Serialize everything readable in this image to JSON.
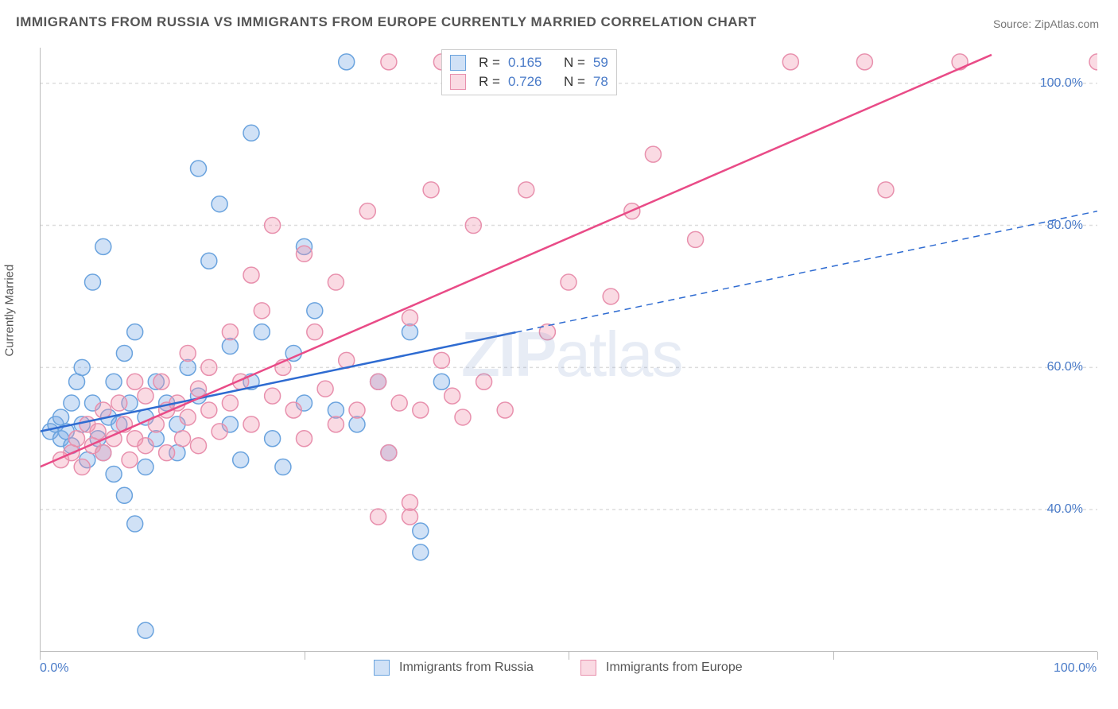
{
  "title": "IMMIGRANTS FROM RUSSIA VS IMMIGRANTS FROM EUROPE CURRENTLY MARRIED CORRELATION CHART",
  "source": "Source: ZipAtlas.com",
  "y_axis_label": "Currently Married",
  "watermark": {
    "zip": "ZIP",
    "atlas": "atlas"
  },
  "chart": {
    "type": "scatter",
    "xlim": [
      0,
      100
    ],
    "ylim": [
      20,
      105
    ],
    "x_ticks": [
      0,
      50,
      100
    ],
    "x_tick_labels": [
      "0.0%",
      "",
      "100.0%"
    ],
    "y_ticks": [
      40,
      60,
      80,
      100
    ],
    "y_tick_labels": [
      "40.0%",
      "60.0%",
      "80.0%",
      "100.0%"
    ],
    "x_minor_ticks": [
      0,
      25,
      50,
      75,
      100
    ],
    "grid_color": "#dddddd",
    "axis_color": "#bbbbbb",
    "plot_bg": "#ffffff",
    "series": [
      {
        "name": "Immigrants from Russia",
        "legend_label": "Immigrants from Russia",
        "R": "0.165",
        "N": "59",
        "marker_fill": "rgba(120,170,230,0.35)",
        "marker_stroke": "#6aa3de",
        "marker_radius": 10,
        "line_color": "#2e6bd1",
        "line_width": 2.5,
        "line_dash_after": 45,
        "trend": {
          "x1": 0,
          "y1": 51,
          "x2": 100,
          "y2": 82
        },
        "points": [
          [
            1,
            51
          ],
          [
            1.5,
            52
          ],
          [
            2,
            50
          ],
          [
            2,
            53
          ],
          [
            2.5,
            51
          ],
          [
            3,
            55
          ],
          [
            3,
            49
          ],
          [
            3.5,
            58
          ],
          [
            4,
            52
          ],
          [
            4,
            60
          ],
          [
            4.5,
            47
          ],
          [
            5,
            72
          ],
          [
            5,
            55
          ],
          [
            5.5,
            50
          ],
          [
            6,
            77
          ],
          [
            6,
            48
          ],
          [
            6.5,
            53
          ],
          [
            7,
            45
          ],
          [
            7,
            58
          ],
          [
            7.5,
            52
          ],
          [
            8,
            62
          ],
          [
            8,
            42
          ],
          [
            8.5,
            55
          ],
          [
            9,
            38
          ],
          [
            9,
            65
          ],
          [
            10,
            46
          ],
          [
            10,
            53
          ],
          [
            11,
            58
          ],
          [
            11,
            50
          ],
          [
            12,
            55
          ],
          [
            13,
            48
          ],
          [
            13,
            52
          ],
          [
            14,
            60
          ],
          [
            15,
            88
          ],
          [
            15,
            56
          ],
          [
            16,
            75
          ],
          [
            17,
            83
          ],
          [
            18,
            52
          ],
          [
            18,
            63
          ],
          [
            19,
            47
          ],
          [
            20,
            93
          ],
          [
            20,
            58
          ],
          [
            21,
            65
          ],
          [
            22,
            50
          ],
          [
            23,
            46
          ],
          [
            24,
            62
          ],
          [
            25,
            77
          ],
          [
            25,
            55
          ],
          [
            26,
            68
          ],
          [
            28,
            54
          ],
          [
            29,
            103
          ],
          [
            30,
            52
          ],
          [
            32,
            58
          ],
          [
            33,
            48
          ],
          [
            35,
            65
          ],
          [
            36,
            34
          ],
          [
            36,
            37
          ],
          [
            38,
            58
          ],
          [
            10,
            23
          ]
        ]
      },
      {
        "name": "Immigrants from Europe",
        "legend_label": "Immigrants from Europe",
        "R": "0.726",
        "N": "78",
        "marker_fill": "rgba(240,150,175,0.35)",
        "marker_stroke": "#e890ad",
        "marker_radius": 10,
        "line_color": "#e94b87",
        "line_width": 2.5,
        "trend": {
          "x1": 0,
          "y1": 46,
          "x2": 90,
          "y2": 104
        },
        "points": [
          [
            2,
            47
          ],
          [
            3,
            48
          ],
          [
            3.5,
            50
          ],
          [
            4,
            46
          ],
          [
            4.5,
            52
          ],
          [
            5,
            49
          ],
          [
            5.5,
            51
          ],
          [
            6,
            54
          ],
          [
            6,
            48
          ],
          [
            7,
            50
          ],
          [
            7.5,
            55
          ],
          [
            8,
            52
          ],
          [
            8.5,
            47
          ],
          [
            9,
            58
          ],
          [
            9,
            50
          ],
          [
            10,
            56
          ],
          [
            10,
            49
          ],
          [
            11,
            52
          ],
          [
            11.5,
            58
          ],
          [
            12,
            54
          ],
          [
            12,
            48
          ],
          [
            13,
            55
          ],
          [
            13.5,
            50
          ],
          [
            14,
            62
          ],
          [
            14,
            53
          ],
          [
            15,
            57
          ],
          [
            15,
            49
          ],
          [
            16,
            60
          ],
          [
            16,
            54
          ],
          [
            17,
            51
          ],
          [
            18,
            65
          ],
          [
            18,
            55
          ],
          [
            19,
            58
          ],
          [
            20,
            73
          ],
          [
            20,
            52
          ],
          [
            21,
            68
          ],
          [
            22,
            80
          ],
          [
            22,
            56
          ],
          [
            23,
            60
          ],
          [
            24,
            54
          ],
          [
            25,
            76
          ],
          [
            25,
            50
          ],
          [
            26,
            65
          ],
          [
            27,
            57
          ],
          [
            28,
            72
          ],
          [
            28,
            52
          ],
          [
            29,
            61
          ],
          [
            30,
            54
          ],
          [
            31,
            82
          ],
          [
            32,
            58
          ],
          [
            33,
            48
          ],
          [
            33,
            103
          ],
          [
            34,
            55
          ],
          [
            35,
            67
          ],
          [
            35,
            41
          ],
          [
            36,
            54
          ],
          [
            37,
            85
          ],
          [
            38,
            61
          ],
          [
            38,
            103
          ],
          [
            39,
            56
          ],
          [
            40,
            53
          ],
          [
            41,
            80
          ],
          [
            42,
            58
          ],
          [
            44,
            54
          ],
          [
            46,
            85
          ],
          [
            48,
            65
          ],
          [
            50,
            72
          ],
          [
            54,
            70
          ],
          [
            56,
            82
          ],
          [
            58,
            90
          ],
          [
            62,
            78
          ],
          [
            71,
            103
          ],
          [
            78,
            103
          ],
          [
            80,
            85
          ],
          [
            87,
            103
          ],
          [
            100,
            103
          ],
          [
            35,
            39
          ],
          [
            32,
            39
          ]
        ]
      }
    ]
  },
  "legend_top": {
    "r_label": "R =",
    "n_label": "N ="
  }
}
